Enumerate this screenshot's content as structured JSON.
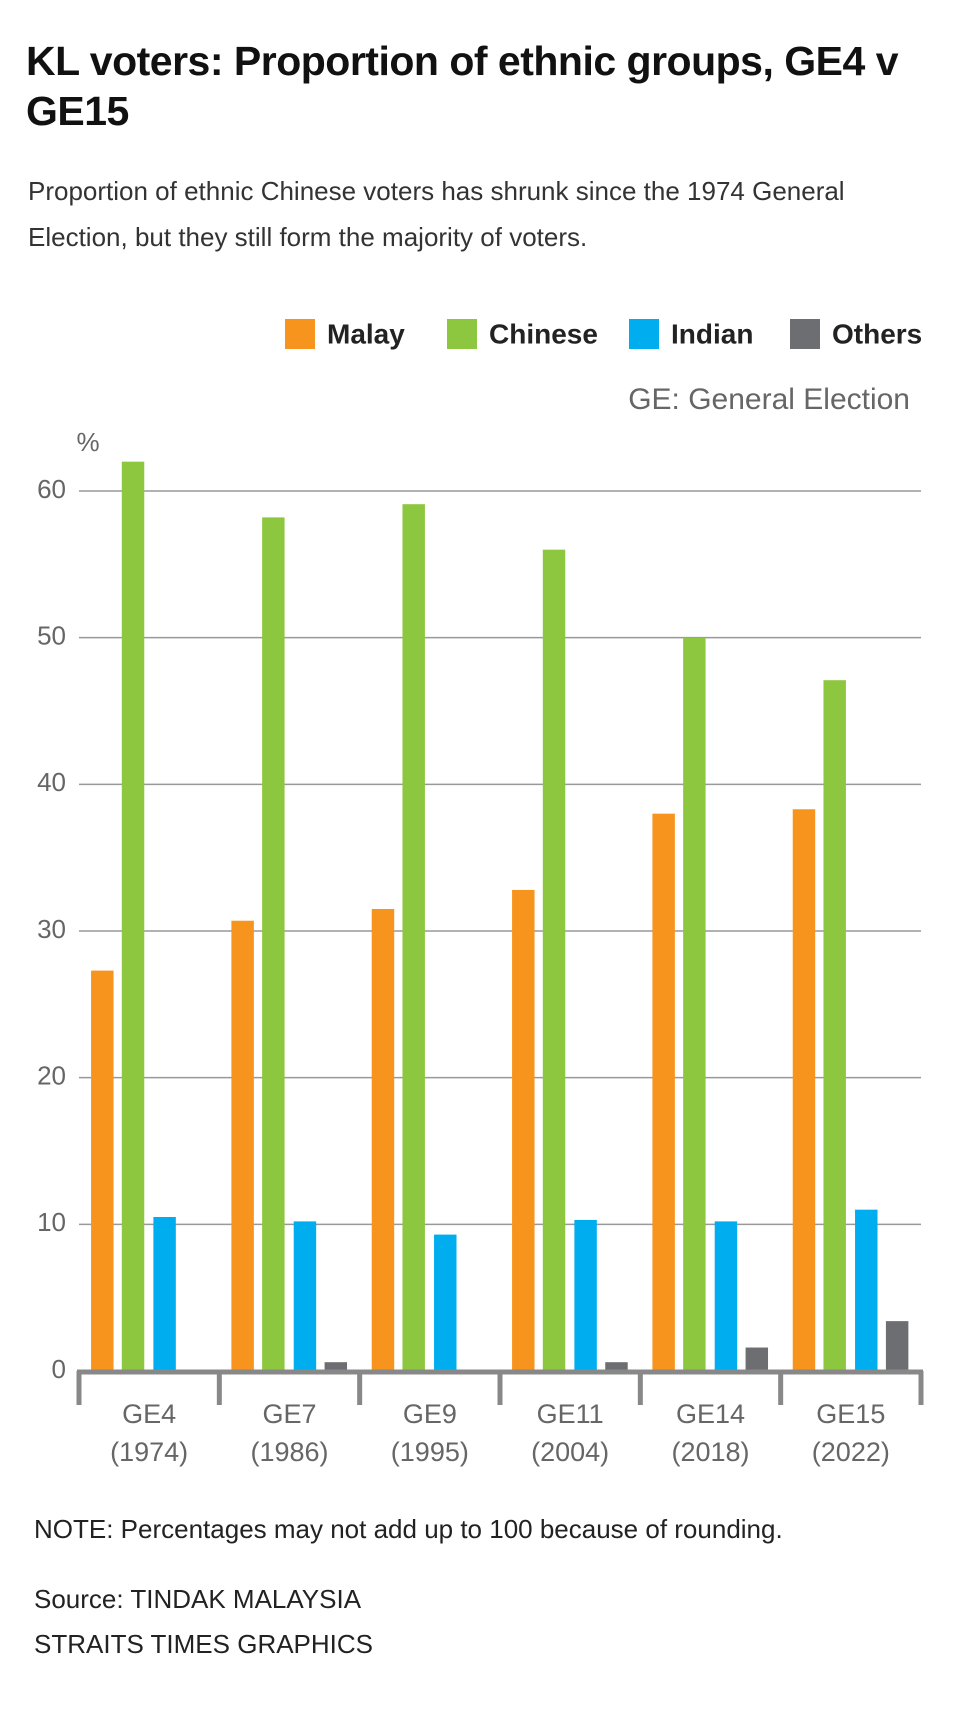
{
  "chart_data": {
    "type": "bar",
    "title": "KL voters: Proportion of ethnic groups, GE4 v GE15",
    "subtitle": "Proportion of ethnic Chinese voters has shrunk since the 1974 General Election, but they still form the majority of voters.",
    "annotation": "GE: General Election",
    "y_label": "%",
    "categories": [
      "GE4 (1974)",
      "GE7 (1986)",
      "GE9 (1995)",
      "GE11 (2004)",
      "GE14 (2018)",
      "GE15 (2022)"
    ],
    "series": [
      {
        "name": "Malay",
        "color": "#f7941d",
        "values": [
          27.3,
          30.7,
          31.5,
          32.8,
          38.0,
          38.3
        ]
      },
      {
        "name": "Chinese",
        "color": "#8dc63f",
        "values": [
          62.0,
          58.2,
          59.1,
          56.0,
          50.0,
          47.1
        ]
      },
      {
        "name": "Indian",
        "color": "#00aeef",
        "values": [
          10.5,
          10.2,
          9.3,
          10.3,
          10.2,
          11.0
        ]
      },
      {
        "name": "Others",
        "color": "#6d6e71",
        "values": [
          0,
          0.6,
          0,
          0.6,
          1.6,
          3.4
        ]
      }
    ],
    "ylim": [
      0,
      65
    ],
    "yticks": [
      0,
      10,
      20,
      30,
      40,
      50,
      60
    ],
    "grid": true,
    "legend": "top-right",
    "note": "NOTE: Percentages may not add up to 100 because of rounding.",
    "source": "Source: TINDAK MALAYSIA",
    "credit": "STRAITS TIMES GRAPHICS"
  }
}
